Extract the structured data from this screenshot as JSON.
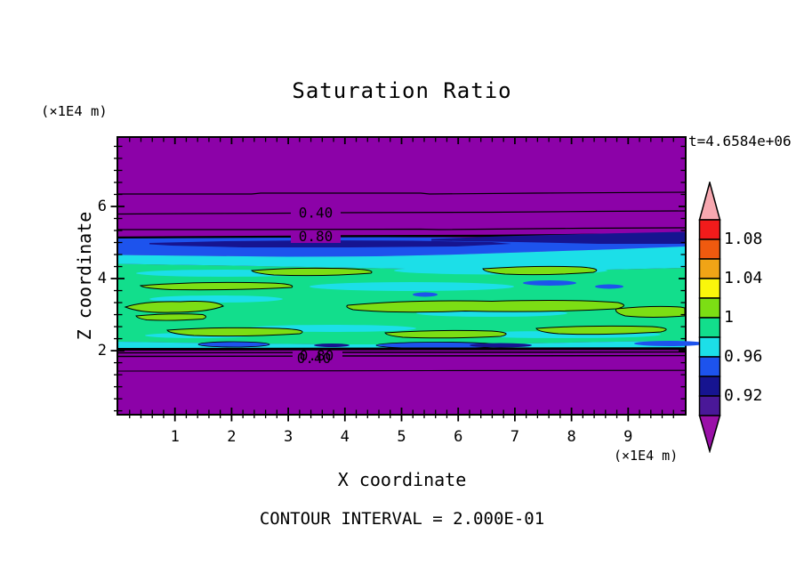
{
  "plot": {
    "title": "Saturation Ratio",
    "y_unit": "(×1E4 m)",
    "x_unit": "(×1E4 m)",
    "time_label": "t=4.6584e+06",
    "x_label": "X coordinate",
    "y_label": "Z coordinate",
    "footer": "CONTOUR INTERVAL = 2.000E-01"
  },
  "contour_line_labels": {
    "l040": "0.40",
    "l080": "0.80"
  },
  "axes": {
    "x": {
      "ticks": [
        {
          "v": 1,
          "label": "1"
        },
        {
          "v": 2,
          "label": "2"
        },
        {
          "v": 3,
          "label": "3"
        },
        {
          "v": 4,
          "label": "4"
        },
        {
          "v": 5,
          "label": "5"
        },
        {
          "v": 6,
          "label": "6"
        },
        {
          "v": 7,
          "label": "7"
        },
        {
          "v": 8,
          "label": "8"
        },
        {
          "v": 9,
          "label": "9"
        }
      ]
    },
    "y": {
      "ticks": [
        {
          "v": 2,
          "label": "2"
        },
        {
          "v": 4,
          "label": "4"
        },
        {
          "v": 6,
          "label": "6"
        }
      ]
    }
  },
  "colorbar": {
    "arrow_top_color": "#F7A8B0",
    "arrow_bottom_color": "#9A10A8",
    "segments": [
      "#F21B1B",
      "#EF5A0F",
      "#F0A416",
      "#FAF60B",
      "#7CDE14",
      "#12DE8C",
      "#1CDFE8",
      "#1D53ED",
      "#161490",
      "#4A1898"
    ],
    "labels": [
      {
        "text": "1.08",
        "boundary": 1
      },
      {
        "text": "1.04",
        "boundary": 3
      },
      {
        "text": "1",
        "boundary": 5
      },
      {
        "text": "0.96",
        "boundary": 7
      },
      {
        "text": "0.92",
        "boundary": 9
      }
    ]
  },
  "colors": {
    "purple": "#8C02A8",
    "navy": "#161490",
    "blue": "#1D53ED",
    "cyan": "#1CDFE8",
    "green": "#12DE8C",
    "chart": "#7CDE14",
    "pink": "#F7A8B0",
    "arrowbottom": "#9A10A8"
  },
  "chart_data": {
    "type": "contour",
    "title": "Saturation Ratio",
    "xlabel": "X coordinate",
    "ylabel": "Z coordinate",
    "axis_units": "×1E4 m",
    "time": "t=4.6584e+06",
    "x_range": [
      0,
      10
    ],
    "z_range": [
      0.25,
      7.9
    ],
    "x_major_ticks": [
      1,
      2,
      3,
      4,
      5,
      6,
      7,
      8,
      9
    ],
    "x_minor_tick_step": 0.2,
    "z_major_ticks": [
      2,
      4,
      6
    ],
    "z_minor_tick_step": 0.3333,
    "contour_interval": 0.2,
    "colorbar_fill_step": 0.02,
    "colorbar_labeled_levels": [
      1.08,
      1.04,
      1,
      0.96,
      0.92
    ],
    "colorbar_value_range": [
      0.9,
      1.1
    ],
    "labeled_line_contours": [
      0.4,
      0.8
    ],
    "line_contours": [
      {
        "value": 0.2,
        "side": "upper",
        "z": 6.35
      },
      {
        "value": 0.4,
        "side": "upper",
        "z": 5.83
      },
      {
        "value": 0.6,
        "side": "upper",
        "z": 5.38
      },
      {
        "value": 0.8,
        "side": "upper",
        "z": 5.16
      },
      {
        "value": 0.8,
        "side": "lower",
        "z": 2.05
      },
      {
        "value": 0.6,
        "side": "lower",
        "z": 1.95
      },
      {
        "value": 0.4,
        "side": "lower",
        "z": 1.85
      },
      {
        "value": 0.2,
        "side": "lower",
        "z": 1.43
      }
    ],
    "bands": [
      {
        "z_from": 5.2,
        "z_to": 7.9,
        "saturation_ratio": "< 0.2",
        "fill": "purple"
      },
      {
        "z_from": 4.7,
        "z_to": 5.2,
        "saturation_ratio": "0.92–0.96",
        "fill": "navy/blue"
      },
      {
        "z_from": 4.35,
        "z_to": 4.7,
        "saturation_ratio": "0.96–0.98",
        "fill": "cyan"
      },
      {
        "z_from": 2.2,
        "z_to": 4.35,
        "saturation_ratio": "0.98–1.02",
        "fill": "green with chartreuse (1.00–1.02) and cyan (0.96–0.98) streaks"
      },
      {
        "z_from": 2.05,
        "z_to": 2.2,
        "saturation_ratio": "0.92–0.98",
        "fill": "cyan/blue/navy streaks"
      },
      {
        "z_from": 0.25,
        "z_to": 2.05,
        "saturation_ratio": "< 0.2",
        "fill": "purple"
      }
    ]
  }
}
